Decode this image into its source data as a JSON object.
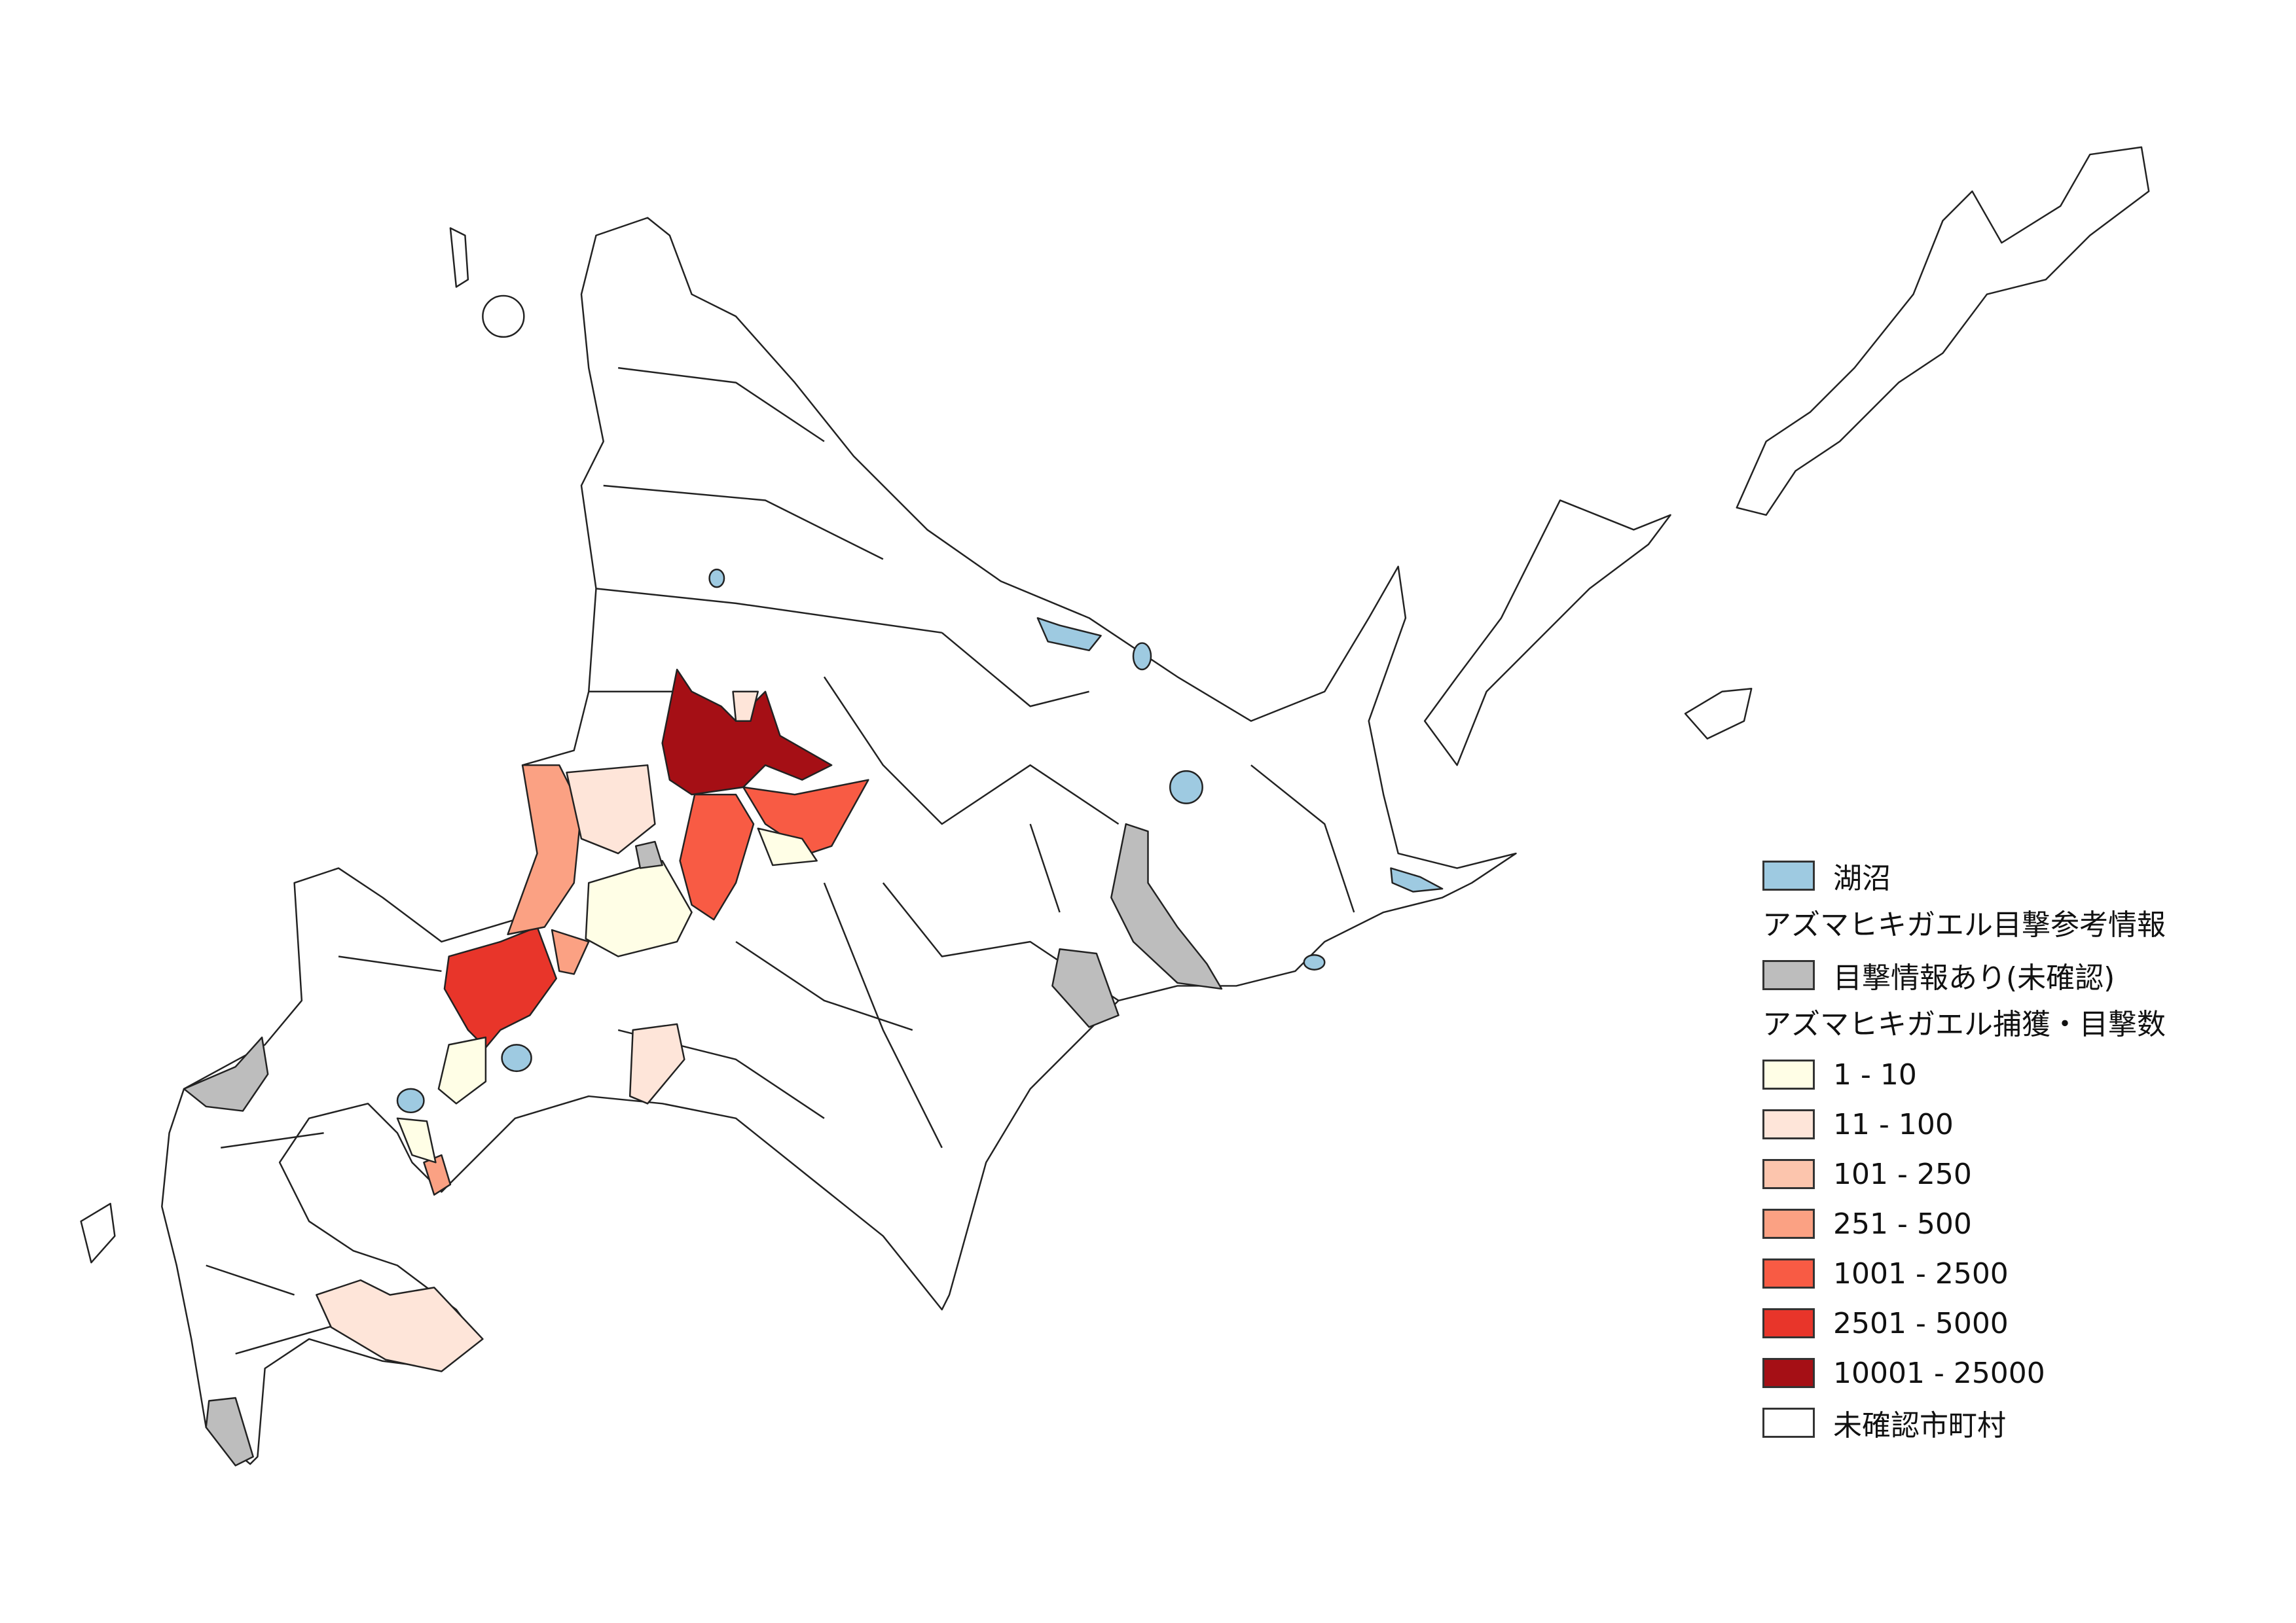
{
  "map": {
    "colors": {
      "land": "#ffffff",
      "lake": "#9ecae1",
      "unconfirmed_sighting": "#bdbdbd",
      "c1_10": "#fffee6",
      "c11_100": "#fee5d9",
      "c101_250": "#fcc5ad",
      "c251_500": "#fba183",
      "c1001_2500": "#f85b44",
      "c2501_5000": "#e8352a",
      "c10001_25000": "#a50f15"
    }
  },
  "legend": {
    "lake": {
      "label": "湖沼",
      "color": "#9ecae1"
    },
    "reference_heading": "アズマヒキガエル目撃参考情報",
    "reference": {
      "label": "目撃情報あり(未確認)",
      "color": "#bdbdbd"
    },
    "count_heading": "アズマヒキガエル捕獲・目撃数",
    "classes": [
      {
        "label": "1 - 10",
        "color": "#fffee6"
      },
      {
        "label": "11 - 100",
        "color": "#fee5d9"
      },
      {
        "label": "101 - 250",
        "color": "#fcc5ad"
      },
      {
        "label": "251 - 500",
        "color": "#fba183"
      },
      {
        "label": "1001 - 2500",
        "color": "#f85b44"
      },
      {
        "label": "2501 - 5000",
        "color": "#e8352a"
      },
      {
        "label": "10001 - 25000",
        "color": "#a50f15"
      }
    ],
    "unconfirmed": {
      "label": "未確認市町村",
      "color": "#ffffff"
    }
  }
}
